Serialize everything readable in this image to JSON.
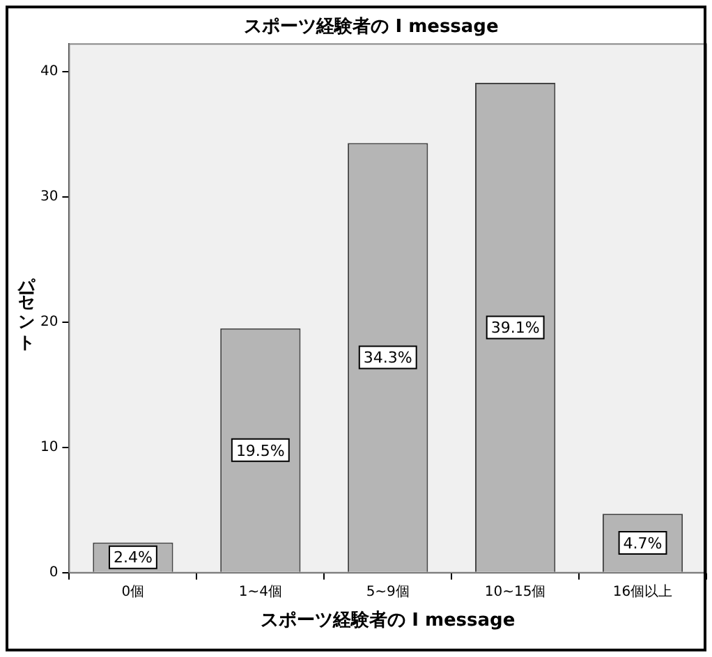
{
  "chart_data": {
    "type": "bar",
    "title": "スポーツ経験者の I message",
    "xlabel": "スポーツ経験者の I message",
    "ylabel": "パーセント",
    "categories": [
      "0個",
      "1~4個",
      "5~9個",
      "10~15個",
      "16個以上"
    ],
    "values": [
      2.4,
      19.5,
      34.3,
      39.1,
      4.7
    ],
    "value_labels": [
      "2.4%",
      "19.5%",
      "34.3%",
      "39.1%",
      "4.7%"
    ],
    "color": "#b5b5b5",
    "ylim": [
      0,
      42.2
    ],
    "yticks": [
      0,
      10,
      20,
      30,
      40
    ]
  }
}
